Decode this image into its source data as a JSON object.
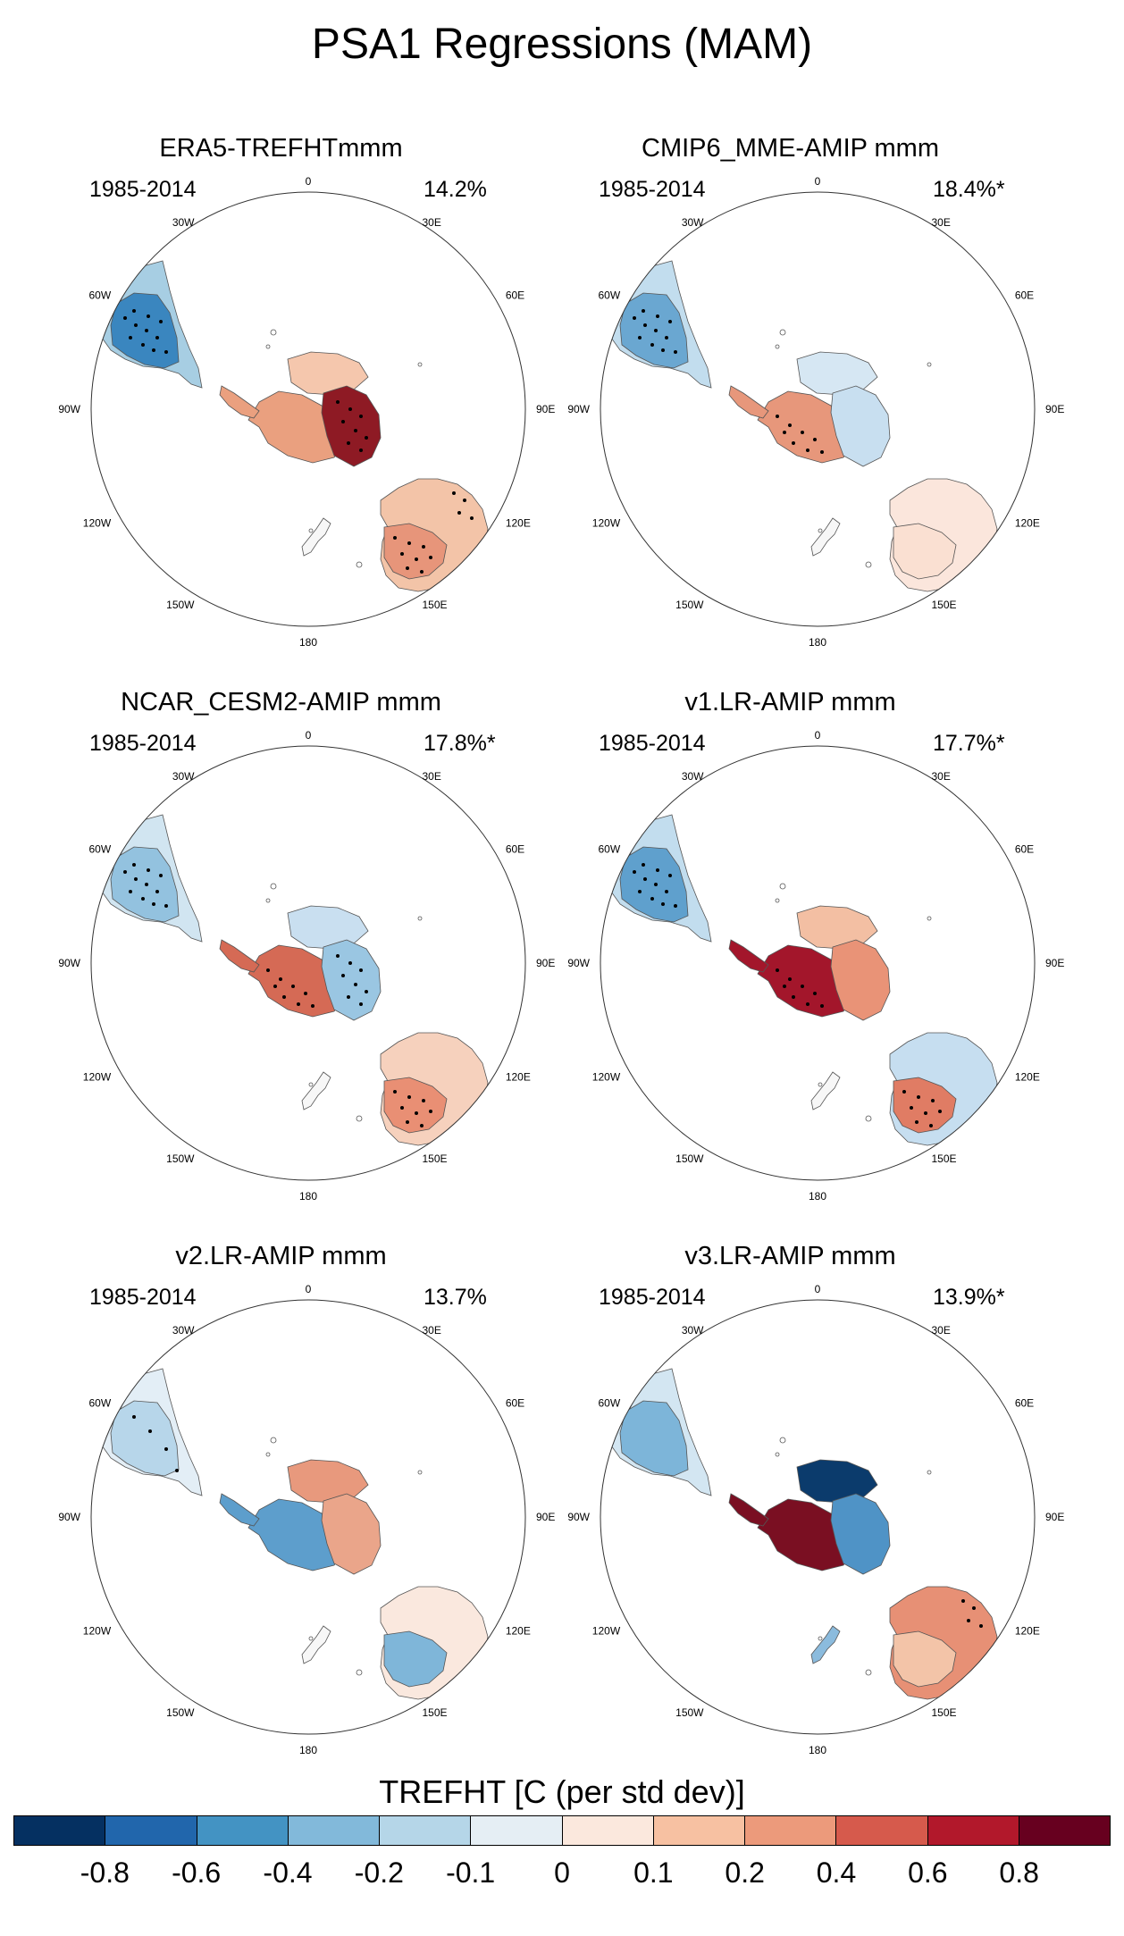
{
  "title": "PSA1 Regressions (MAM)",
  "panels": [
    {
      "title": "ERA5-TREFHTmmm",
      "period": "1985-2014",
      "percent": "14.2%",
      "fills": {
        "sa_core": "#3a86bf",
        "sa_edge": "#a7cee3",
        "ant_e": "#8e1a24",
        "ant_w": "#eaa07f",
        "ant_n": "#f5c7ad",
        "aus_main": "#f3c4a8",
        "aus_se": "#e7957a",
        "af_main": "#f3c8b0",
        "nz": "#f7f7f7"
      },
      "stipple": [
        "sa",
        "ant_e",
        "aus_se",
        "aus_n"
      ]
    },
    {
      "title": "CMIP6_MME-AMIP  mmm",
      "period": "1985-2014",
      "percent": "18.4%*",
      "fills": {
        "sa_core": "#6aa7d1",
        "sa_edge": "#c2ddee",
        "ant_e": "#c8dff0",
        "ant_w": "#e7977b",
        "ant_n": "#d6e7f3",
        "aus_main": "#fbe6dc",
        "aus_se": "#fae0d2",
        "af_main": "#ec9c81",
        "nz": "#f7f7f7"
      },
      "stipple": [
        "sa",
        "ant_w",
        "af"
      ]
    },
    {
      "title": "NCAR_CESM2-AMIP  mmm",
      "period": "1985-2014",
      "percent": "17.8%*",
      "fills": {
        "sa_core": "#93c2df",
        "sa_edge": "#d1e5f1",
        "ant_e": "#9ac6e2",
        "ant_w": "#d56a55",
        "ant_n": "#c9dff0",
        "aus_main": "#f6d1bd",
        "aus_se": "#e98f74",
        "af_main": "#f2bea3",
        "nz": "#f7f7f7"
      },
      "stipple": [
        "sa",
        "ant_w",
        "ant_e",
        "aus_se",
        "af"
      ]
    },
    {
      "title": "v1.LR-AMIP  mmm",
      "period": "1985-2014",
      "percent": "17.7%*",
      "fills": {
        "sa_core": "#5fa0cd",
        "sa_edge": "#c2ddee",
        "ant_e": "#e99377",
        "ant_w": "#a3162b",
        "ant_n": "#f3bfa3",
        "aus_main": "#c6def0",
        "aus_se": "#e07c64",
        "af_main": "#eda185",
        "nz": "#f7f7f7"
      },
      "stipple": [
        "sa",
        "ant_w",
        "aus_se"
      ]
    },
    {
      "title": "v2.LR-AMIP  mmm",
      "period": "1985-2014",
      "percent": "13.7%",
      "fills": {
        "sa_core": "#b7d6ea",
        "sa_edge": "#e3eef6",
        "ant_e": "#eaa58a",
        "ant_w": "#5d9ecc",
        "ant_n": "#e8997d",
        "aus_main": "#fae8de",
        "aus_se": "#7fb6d9",
        "af_main": "#b9d7ea",
        "nz": "#f7f7f7"
      },
      "stipple": [
        "sa_pts"
      ]
    },
    {
      "title": "v3.LR-AMIP  mmm",
      "period": "1985-2014",
      "percent": "13.9%*",
      "fills": {
        "sa_core": "#7db5d9",
        "sa_edge": "#d3e6f2",
        "ant_e": "#4f93c6",
        "ant_w": "#7a0f22",
        "ant_n": "#0b3b6c",
        "aus_main": "#e79075",
        "aus_se": "#f3c4a8",
        "af_main": "#e58c71",
        "nz": "#8bbbdd"
      },
      "stipple": [
        "aus_n"
      ]
    }
  ],
  "lon_labels": [
    "0",
    "30E",
    "60E",
    "90E",
    "120E",
    "150E",
    "180",
    "150W",
    "120W",
    "90W",
    "60W",
    "30W"
  ],
  "colorbar": {
    "title": "TREFHT [C (per std dev)]",
    "colors": [
      "#053061",
      "#2166ac",
      "#4393c3",
      "#82b9da",
      "#b5d6e8",
      "#e5eef4",
      "#fbe8dd",
      "#f7c1a2",
      "#ec9a7b",
      "#d65a4c",
      "#b2182b",
      "#67001f"
    ],
    "ticks": [
      "-0.8",
      "-0.6",
      "-0.4",
      "-0.2",
      "-0.1",
      "0",
      "0.1",
      "0.2",
      "0.4",
      "0.6",
      "0.8"
    ]
  }
}
